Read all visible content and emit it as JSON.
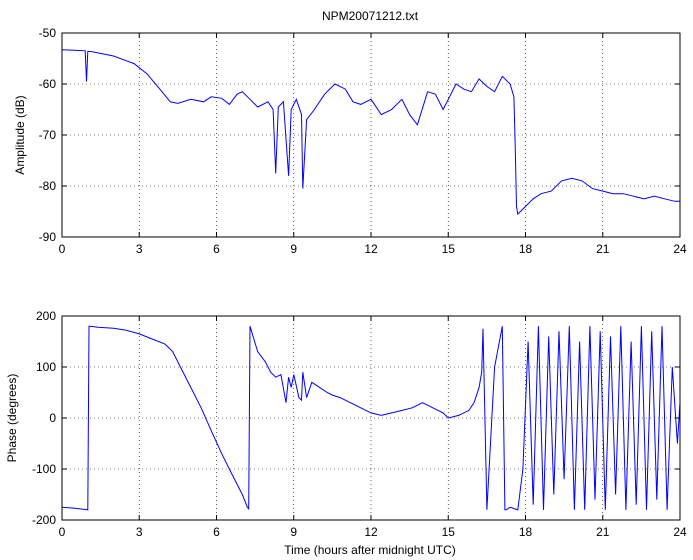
{
  "chart_data": [
    {
      "type": "line",
      "title": "NPM20071212.txt",
      "xlabel": "",
      "ylabel": "Amplitude (dB)",
      "xlim": [
        0,
        24
      ],
      "ylim": [
        -90,
        -50
      ],
      "xticks": [
        0,
        3,
        6,
        9,
        12,
        15,
        18,
        21,
        24
      ],
      "yticks": [
        -90,
        -80,
        -70,
        -60,
        -50
      ],
      "grid": true,
      "color": "#0000ff",
      "series": [
        {
          "name": "",
          "x": [
            0,
            0.5,
            0.9,
            0.95,
            1.0,
            1.05,
            1.2,
            2.0,
            2.8,
            3.3,
            3.8,
            4.2,
            4.5,
            5.0,
            5.5,
            5.8,
            6.2,
            6.5,
            6.8,
            7.0,
            7.3,
            7.6,
            8.0,
            8.2,
            8.3,
            8.4,
            8.6,
            8.8,
            8.9,
            9.1,
            9.3,
            9.35,
            9.5,
            9.8,
            10.2,
            10.6,
            11.0,
            11.3,
            11.6,
            12.0,
            12.4,
            12.8,
            13.2,
            13.5,
            13.8,
            14.2,
            14.5,
            14.8,
            15.0,
            15.3,
            15.6,
            15.9,
            16.2,
            16.5,
            16.8,
            17.1,
            17.4,
            17.55,
            17.6,
            17.65,
            17.7,
            17.8,
            18.0,
            18.3,
            18.6,
            19.0,
            19.4,
            19.8,
            20.2,
            20.6,
            21.0,
            21.4,
            21.8,
            22.2,
            22.6,
            23.0,
            23.4,
            23.8,
            24.0
          ],
          "y": [
            -53.3,
            -53.4,
            -53.5,
            -59.5,
            -53.6,
            -53.6,
            -53.7,
            -54.5,
            -56.0,
            -58.0,
            -61.0,
            -63.5,
            -63.8,
            -63.0,
            -63.5,
            -62.5,
            -62.8,
            -64.0,
            -62.0,
            -61.5,
            -63.0,
            -64.5,
            -63.5,
            -65.0,
            -77.5,
            -64.5,
            -63.5,
            -78.0,
            -65.0,
            -63.0,
            -66.0,
            -80.5,
            -67.0,
            -65.0,
            -62.0,
            -60.0,
            -61.0,
            -63.5,
            -64.0,
            -63.0,
            -66.0,
            -65.0,
            -63.0,
            -66.0,
            -68.0,
            -61.5,
            -62.0,
            -65.0,
            -63.0,
            -60.0,
            -61.0,
            -61.5,
            -59.0,
            -60.5,
            -61.5,
            -58.5,
            -60.0,
            -62.5,
            -72.0,
            -84.0,
            -85.5,
            -85.0,
            -84.0,
            -82.5,
            -81.5,
            -81.0,
            -79.0,
            -78.5,
            -79.0,
            -80.5,
            -81.0,
            -81.5,
            -81.5,
            -82.0,
            -82.5,
            -82.0,
            -82.5,
            -83.0,
            -83.0
          ]
        }
      ]
    },
    {
      "type": "line",
      "title": "",
      "xlabel": "Time (hours after midnight UTC)",
      "ylabel": "Phase (degrees)",
      "xlim": [
        0,
        24
      ],
      "ylim": [
        -200,
        200
      ],
      "xticks": [
        0,
        3,
        6,
        9,
        12,
        15,
        18,
        21,
        24
      ],
      "yticks": [
        -200,
        -100,
        0,
        100,
        200
      ],
      "grid": true,
      "color": "#0000ff",
      "series": [
        {
          "name": "",
          "x": [
            0,
            0.5,
            1.0,
            1.05,
            1.1,
            1.4,
            1.7,
            2.0,
            2.5,
            3.0,
            3.5,
            4.0,
            4.3,
            4.6,
            5.0,
            5.4,
            5.8,
            6.2,
            6.6,
            7.0,
            7.2,
            7.25,
            7.3,
            7.6,
            7.9,
            8.1,
            8.3,
            8.5,
            8.7,
            8.8,
            8.9,
            9.0,
            9.2,
            9.3,
            9.35,
            9.5,
            9.7,
            10.0,
            10.3,
            10.5,
            10.8,
            11.2,
            11.6,
            12.0,
            12.4,
            12.8,
            13.2,
            13.6,
            14.0,
            14.4,
            14.8,
            15.0,
            15.4,
            15.8,
            16.0,
            16.2,
            16.3,
            16.35,
            16.5,
            16.8,
            17.1,
            17.2,
            17.25,
            17.4,
            17.7,
            17.9,
            18.1,
            18.3,
            18.5,
            18.7,
            18.9,
            19.1,
            19.3,
            19.5,
            19.7,
            19.9,
            20.1,
            20.3,
            20.5,
            20.7,
            20.9,
            21.1,
            21.3,
            21.5,
            21.7,
            21.9,
            22.1,
            22.3,
            22.5,
            22.7,
            22.9,
            23.1,
            23.3,
            23.5,
            23.7,
            23.9,
            24.0
          ],
          "y": [
            -175,
            -177,
            -180,
            180,
            180,
            178,
            177,
            176,
            172,
            165,
            155,
            145,
            130,
            100,
            60,
            20,
            -25,
            -70,
            -110,
            -150,
            -175,
            -178,
            180,
            130,
            110,
            90,
            80,
            85,
            30,
            80,
            60,
            85,
            40,
            35,
            90,
            40,
            70,
            60,
            50,
            45,
            40,
            30,
            20,
            10,
            5,
            10,
            15,
            20,
            30,
            20,
            10,
            0,
            5,
            15,
            30,
            60,
            90,
            175,
            -180,
            100,
            180,
            -180,
            -180,
            -175,
            -180,
            -100,
            150,
            -170,
            180,
            -180,
            160,
            -150,
            170,
            -120,
            180,
            -180,
            150,
            -180,
            180,
            -160,
            170,
            -180,
            160,
            -150,
            180,
            -180,
            150,
            -170,
            180,
            -180,
            170,
            -160,
            180,
            -180,
            100,
            -50,
            30
          ]
        }
      ]
    }
  ]
}
